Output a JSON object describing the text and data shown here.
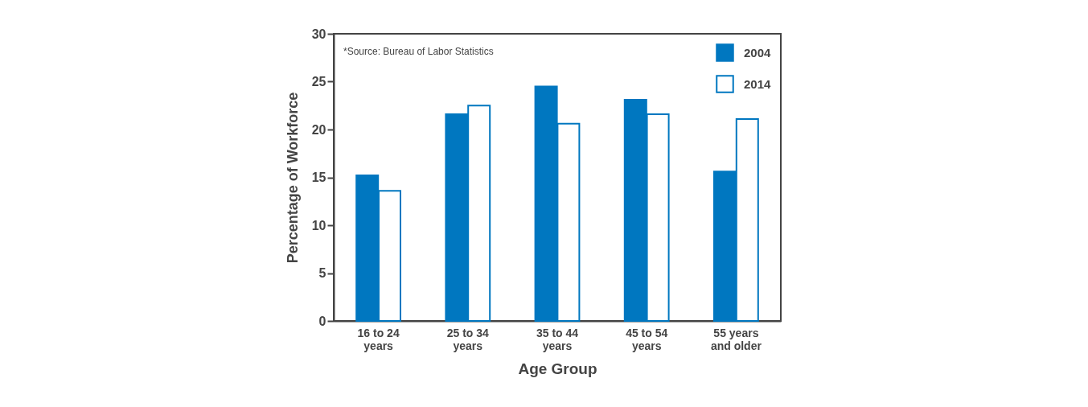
{
  "chart_data": {
    "type": "bar",
    "xlabel": "Age Group",
    "ylabel": "Percentage of Workforce",
    "categories": [
      "16 to 24\nyears",
      "25 to 34\nyears",
      "35 to 44\nyears",
      "45 to 54\nyears",
      "55 years\nand older"
    ],
    "series": [
      {
        "name": "2004",
        "color": "#0077c0",
        "values": [
          15.2,
          21.6,
          24.5,
          23.1,
          15.6
        ]
      },
      {
        "name": "2014",
        "color": "#ffffff",
        "values": [
          13.6,
          22.5,
          20.6,
          21.6,
          21.1
        ]
      }
    ],
    "ylim": [
      0,
      30
    ],
    "yticks": [
      0,
      5,
      10,
      15,
      20,
      25,
      30
    ],
    "grid": false,
    "legend": "top right",
    "annotations": [
      "*Source: Bureau of Labor Statistics"
    ]
  }
}
